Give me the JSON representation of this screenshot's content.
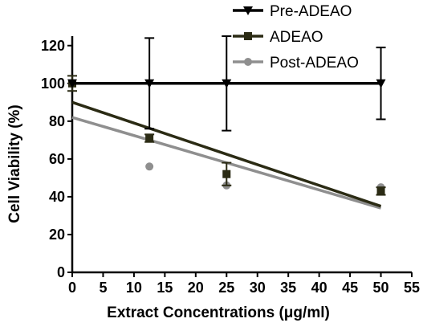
{
  "chart_data": {
    "type": "scatter",
    "xlabel": "Extract Concentrations (μg/ml)",
    "ylabel": "Cell Viability (%)",
    "xlim": [
      0,
      55
    ],
    "ylim": [
      0,
      125
    ],
    "x_ticks": [
      "0",
      "5",
      "10",
      "15",
      "20",
      "25",
      "30",
      "35",
      "40",
      "45",
      "50",
      "55"
    ],
    "y_ticks": [
      "0",
      "20",
      "40",
      "60",
      "80",
      "100",
      "120"
    ],
    "legend_position": "top-right",
    "grid": false,
    "series": [
      {
        "name": "Pre-ADEAO",
        "marker": "triangle-down",
        "color": "#000000",
        "points": [
          {
            "x": 0,
            "y": 100,
            "err": 0
          },
          {
            "x": 12.5,
            "y": 100,
            "err": 24
          },
          {
            "x": 25,
            "y": 100,
            "err": 25
          },
          {
            "x": 50,
            "y": 100,
            "err": 19
          }
        ],
        "fit": {
          "x1": 0,
          "y1": 100,
          "x2": 50,
          "y2": 100
        }
      },
      {
        "name": "ADEAO",
        "marker": "square",
        "color": "#2b2b14",
        "points": [
          {
            "x": 0,
            "y": 100,
            "err": 4
          },
          {
            "x": 12.5,
            "y": 71,
            "err": 2
          },
          {
            "x": 25,
            "y": 52,
            "err": 6
          },
          {
            "x": 50,
            "y": 43,
            "err": 2
          }
        ],
        "fit": {
          "x1": 0,
          "y1": 90,
          "x2": 50,
          "y2": 35
        }
      },
      {
        "name": "Post-ADEAO",
        "marker": "circle",
        "color": "#8f8f8f",
        "points": [
          {
            "x": 0,
            "y": 100,
            "err": 0
          },
          {
            "x": 12.5,
            "y": 56,
            "err": 0
          },
          {
            "x": 25,
            "y": 46,
            "err": 0
          },
          {
            "x": 50,
            "y": 45,
            "err": 0
          }
        ],
        "fit": {
          "x1": 0,
          "y1": 82,
          "x2": 50,
          "y2": 34
        }
      }
    ]
  }
}
